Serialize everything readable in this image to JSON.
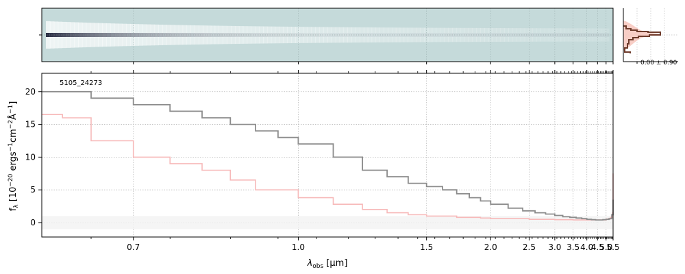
{
  "chart_data": {
    "type": "line",
    "label": "5105_24273",
    "xlabel": "λobs [μm]",
    "xlabel_parts": {
      "main": "λ",
      "sub": "obs",
      "unit": " [μm]"
    },
    "ylabel_parts": {
      "prefix": "f",
      "sub": "λ",
      "b1": " [10",
      "e1": "−20",
      "b2": " ergs",
      "e2": "−1",
      "b3": "cm",
      "e3": "−2",
      "b4": "Å",
      "e4": "−1",
      "b5": "]"
    },
    "x_scale": "reciprocal",
    "x_ticks": [
      0.7,
      1.0,
      1.5,
      2.0,
      2.5,
      3.0,
      3.5,
      4.0,
      4.5,
      5.0,
      5.5
    ],
    "x_tick_labels": [
      "0.7",
      "1.0",
      "1.5",
      "2.0",
      "2.5",
      "3.0",
      "3.5",
      "4.0",
      "4.5",
      "5.0",
      "5.5"
    ],
    "xlim": [
      0.6,
      5.5
    ],
    "y_ticks": [
      0,
      5,
      10,
      15,
      20
    ],
    "y_tick_labels": [
      "0",
      "5",
      "10",
      "15",
      "20"
    ],
    "ylim": [
      -2.2,
      22.8
    ],
    "grid": true,
    "series": [
      {
        "role": "data",
        "color": "#8c8c8c",
        "style": "steps",
        "x": [
          0.6,
          0.65,
          0.7,
          0.75,
          0.8,
          0.85,
          0.9,
          0.95,
          1.0,
          1.1,
          1.2,
          1.3,
          1.4,
          1.5,
          1.6,
          1.7,
          1.8,
          1.9,
          2.0,
          2.2,
          2.4,
          2.6,
          2.8,
          3.0,
          3.2,
          3.4,
          3.6,
          3.8,
          4.0,
          4.2,
          4.4,
          4.6,
          4.8,
          5.0,
          5.2,
          5.4,
          5.5
        ],
        "y": [
          20,
          19,
          18,
          17,
          16,
          15,
          14,
          13,
          12,
          10,
          8,
          7,
          6,
          5.5,
          5,
          4.4,
          3.8,
          3.3,
          2.8,
          2.2,
          1.8,
          1.5,
          1.3,
          1.1,
          0.9,
          0.8,
          0.7,
          0.6,
          0.5,
          0.45,
          0.4,
          0.4,
          0.45,
          0.5,
          0.6,
          1.2,
          3.5
        ]
      },
      {
        "role": "model",
        "color": "#f7b9b9",
        "style": "steps",
        "x": [
          0.6,
          0.62,
          0.65,
          0.7,
          0.75,
          0.8,
          0.85,
          0.9,
          1.0,
          1.1,
          1.2,
          1.3,
          1.4,
          1.5,
          1.7,
          1.9,
          2.0,
          2.5,
          3.0,
          3.5,
          4.0,
          4.5,
          5.0,
          5.3,
          5.45,
          5.5
        ],
        "y": [
          16.5,
          16.0,
          12.5,
          10.0,
          9.0,
          8.0,
          6.5,
          5.0,
          3.8,
          2.8,
          2.0,
          1.5,
          1.2,
          1.0,
          0.8,
          0.7,
          0.6,
          0.5,
          0.45,
          0.4,
          0.4,
          0.4,
          0.55,
          0.8,
          1.5,
          7.5
        ]
      }
    ],
    "spectrum2d": {
      "background_color": "#c5dada",
      "trace_color": "#2b2f45"
    },
    "side_histogram": {
      "annotation": "0.00 ± 0.90",
      "color": "#6e3b2b",
      "fill_color": "#f7c9c0"
    }
  }
}
